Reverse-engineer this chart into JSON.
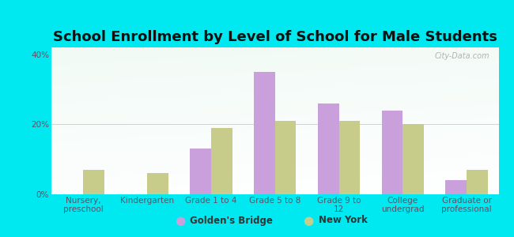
{
  "title": "School Enrollment by Level of School for Male Students",
  "categories": [
    "Nursery,\npreschool",
    "Kindergarten",
    "Grade 1 to 4",
    "Grade 5 to 8",
    "Grade 9 to\n12",
    "College\nundergrad",
    "Graduate or\nprofessional"
  ],
  "golden_bridge": [
    0,
    0,
    13,
    35,
    26,
    24,
    4
  ],
  "new_york": [
    7,
    6,
    19,
    21,
    21,
    20,
    7
  ],
  "golden_bridge_color": "#c9a0dc",
  "new_york_color": "#c8cc8a",
  "background_color": "#00e8f0",
  "title_fontsize": 13,
  "tick_fontsize": 7.5,
  "legend_labels": [
    "Golden's Bridge",
    "New York"
  ],
  "yticks": [
    0,
    20,
    40
  ],
  "ylim": [
    0,
    42
  ],
  "watermark": "City-Data.com"
}
